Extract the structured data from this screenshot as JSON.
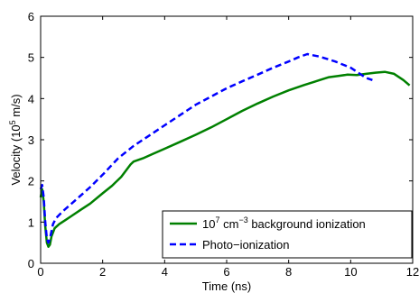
{
  "chart_data": {
    "type": "line",
    "title": "",
    "xlabel": "Time (ns)",
    "ylabel": {
      "prefix": "Velocity (10",
      "exponent": "5",
      "suffix": " m/s)"
    },
    "xlim": [
      0,
      12
    ],
    "ylim": [
      0,
      6
    ],
    "xticks": [
      "0",
      "2",
      "4",
      "6",
      "8",
      "10",
      "12"
    ],
    "yticks": [
      "0",
      "1",
      "2",
      "3",
      "4",
      "5",
      "6"
    ],
    "grid": false,
    "legend_position": "bottom-right",
    "series": [
      {
        "label": {
          "base": "10",
          "exp1": "7",
          "unit": " cm",
          "exp2": "−3",
          "rest": " background ionization"
        },
        "color": "#008000",
        "style": "solid",
        "x": [
          0.0,
          0.05,
          0.1,
          0.15,
          0.2,
          0.25,
          0.3,
          0.35,
          0.45,
          0.6,
          0.8,
          1.0,
          1.3,
          1.6,
          2.0,
          2.3,
          2.6,
          2.9,
          3.0,
          3.3,
          3.6,
          4.0,
          4.5,
          5.0,
          5.5,
          6.0,
          6.5,
          7.0,
          7.5,
          8.0,
          8.5,
          8.8,
          9.0,
          9.3,
          9.6,
          9.9,
          10.2,
          10.5,
          10.8,
          11.1,
          11.4,
          11.7,
          11.9
        ],
        "y": [
          1.6,
          1.8,
          1.5,
          0.9,
          0.5,
          0.4,
          0.45,
          0.65,
          0.85,
          0.95,
          1.05,
          1.15,
          1.3,
          1.45,
          1.7,
          1.88,
          2.1,
          2.4,
          2.47,
          2.55,
          2.65,
          2.78,
          2.95,
          3.12,
          3.3,
          3.5,
          3.7,
          3.88,
          4.05,
          4.2,
          4.33,
          4.4,
          4.45,
          4.52,
          4.55,
          4.58,
          4.57,
          4.6,
          4.63,
          4.65,
          4.6,
          4.45,
          4.32
        ]
      },
      {
        "label": "Photo−ionization",
        "color": "#0000ff",
        "style": "dashed",
        "x": [
          0.0,
          0.05,
          0.1,
          0.15,
          0.2,
          0.25,
          0.3,
          0.4,
          0.5,
          0.7,
          1.0,
          1.3,
          1.6,
          2.0,
          2.5,
          3.0,
          3.5,
          4.0,
          4.5,
          5.0,
          5.5,
          6.0,
          6.5,
          7.0,
          7.5,
          8.0,
          8.3,
          8.6,
          9.0,
          9.5,
          10.0,
          10.3,
          10.5,
          10.7
        ],
        "y": [
          1.8,
          1.9,
          1.6,
          1.0,
          0.6,
          0.5,
          0.6,
          0.95,
          1.1,
          1.25,
          1.45,
          1.65,
          1.85,
          2.15,
          2.55,
          2.85,
          3.1,
          3.35,
          3.6,
          3.85,
          4.05,
          4.25,
          4.42,
          4.58,
          4.75,
          4.9,
          5.0,
          5.08,
          5.02,
          4.9,
          4.75,
          4.6,
          4.5,
          4.45
        ]
      }
    ]
  }
}
